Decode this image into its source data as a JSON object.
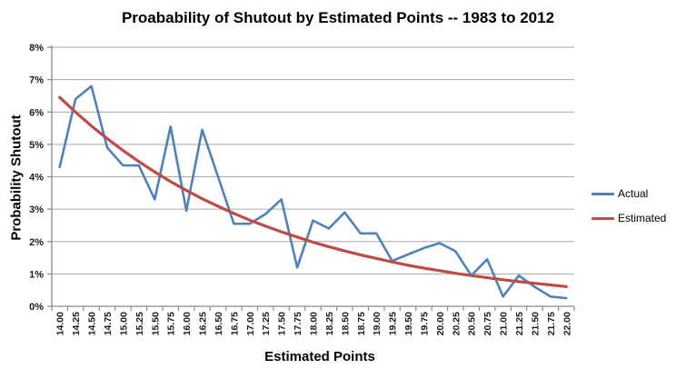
{
  "chart_data": {
    "type": "line",
    "title": "Proabability of Shutout by Estimated Points -- 1983 to 2012",
    "xlabel": "Estimated Points",
    "ylabel": "Probability Shutout",
    "x_categories": [
      "14.00",
      "14.25",
      "14.50",
      "14.75",
      "15.00",
      "15.25",
      "15.50",
      "15.75",
      "16.00",
      "16.25",
      "16.50",
      "16.75",
      "17.00",
      "17.25",
      "17.50",
      "17.75",
      "18.00",
      "18.25",
      "18.50",
      "18.75",
      "19.00",
      "19.25",
      "19.50",
      "19.75",
      "20.00",
      "20.25",
      "20.50",
      "20.75",
      "21.00",
      "21.25",
      "21.50",
      "21.75",
      "22.00"
    ],
    "series": [
      {
        "name": "Actual",
        "color": "#4F81BD",
        "line_width": 2.6,
        "values": [
          4.3,
          6.4,
          6.8,
          4.9,
          4.35,
          4.35,
          3.3,
          5.55,
          2.95,
          5.45,
          4.0,
          2.55,
          2.55,
          2.85,
          3.3,
          1.2,
          2.65,
          2.4,
          2.9,
          2.25,
          2.25,
          1.4,
          1.6,
          1.8,
          1.95,
          1.7,
          0.95,
          1.45,
          0.3,
          0.95,
          0.6,
          0.3,
          0.25
        ]
      },
      {
        "name": "Estimated",
        "color": "#BE4B48",
        "line_width": 3.2,
        "values": [
          6.45,
          6.0,
          5.57,
          5.18,
          4.81,
          4.47,
          4.15,
          3.85,
          3.58,
          3.32,
          3.09,
          2.87,
          2.66,
          2.48,
          2.3,
          2.14,
          1.98,
          1.84,
          1.71,
          1.59,
          1.48,
          1.37,
          1.27,
          1.18,
          1.1,
          1.02,
          0.95,
          0.88,
          0.82,
          0.76,
          0.71,
          0.66,
          0.61
        ]
      }
    ],
    "ylim": [
      0,
      8
    ],
    "y_tick_step": 1,
    "y_tick_labels": [
      "0%",
      "1%",
      "2%",
      "3%",
      "4%",
      "5%",
      "6%",
      "7%",
      "8%"
    ],
    "grid": "horizontal",
    "legend_position": "right",
    "colors": {
      "gridline": "#A6A6A6",
      "axis": "#8C8C8C",
      "tick_text": "#1A1A1A",
      "background": "#FFFFFF"
    }
  }
}
